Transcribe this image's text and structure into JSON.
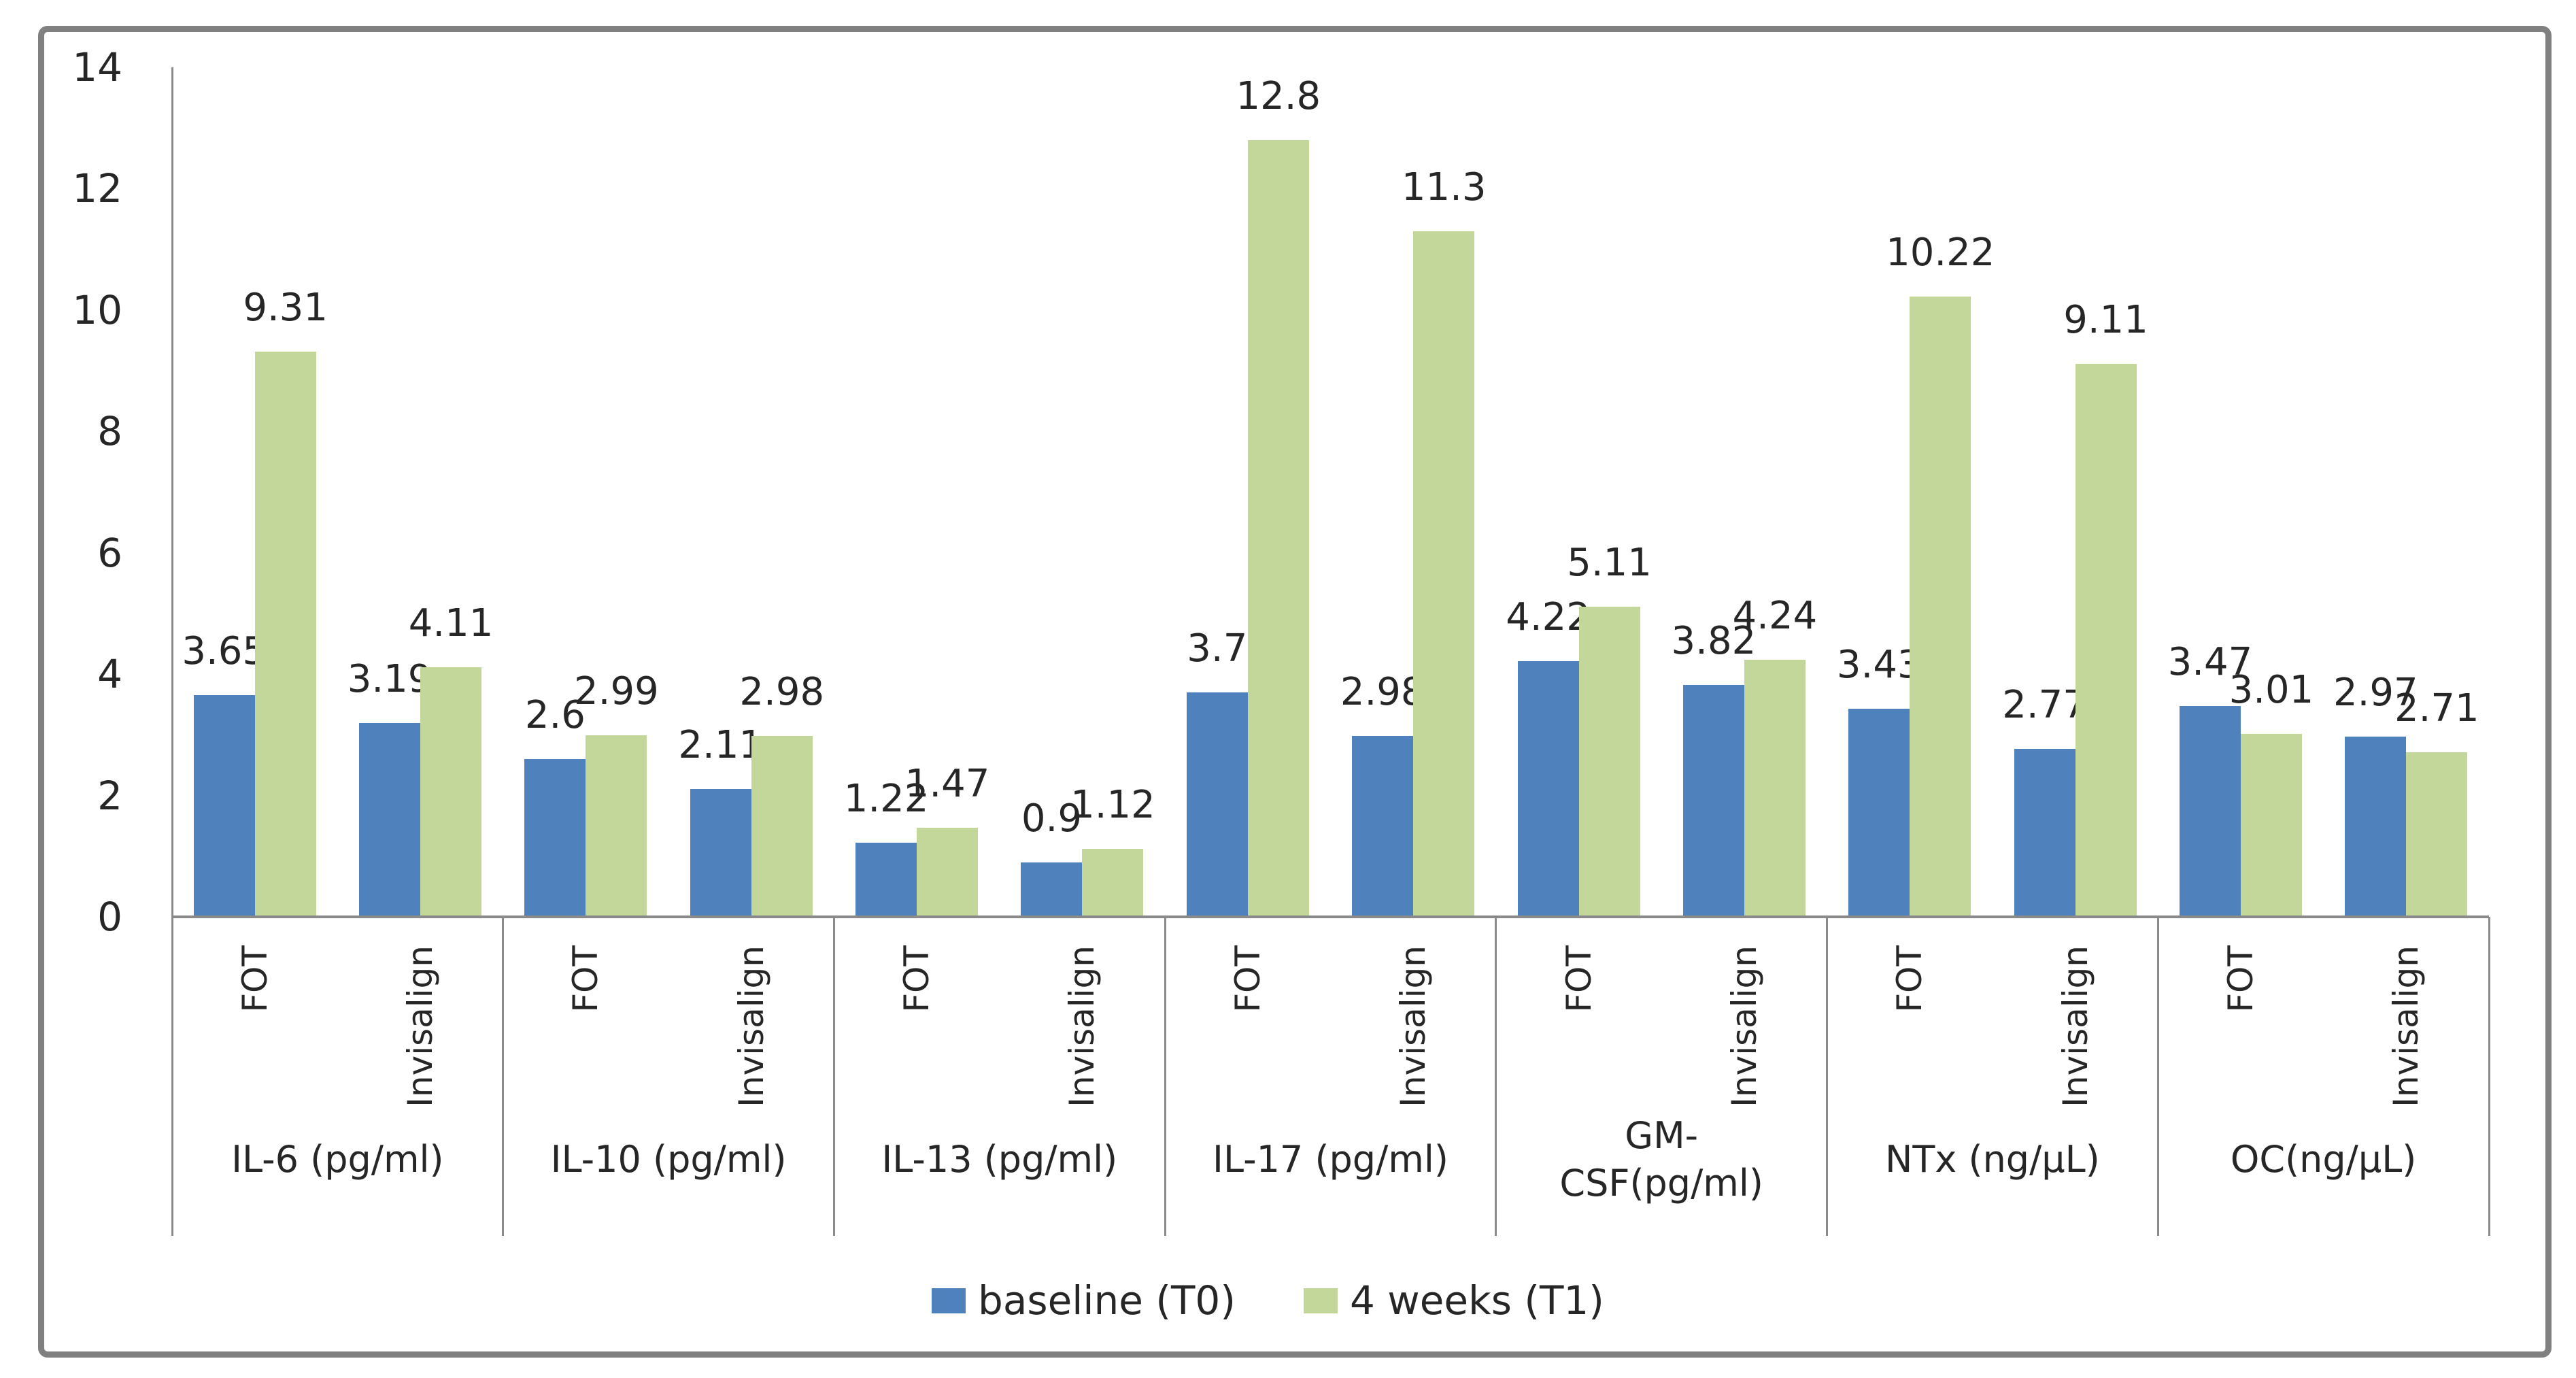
{
  "chart_data": {
    "type": "bar",
    "title": "",
    "y_axis": {
      "min": 0,
      "max": 14,
      "step": 2,
      "ticks": [
        "0",
        "2",
        "4",
        "6",
        "8",
        "10",
        "12",
        "14"
      ]
    },
    "grid": "off",
    "legend_position": "bottom",
    "series": [
      {
        "name": "baseline (T0)",
        "color": "#4F81BD"
      },
      {
        "name": "4 weeks (T1)",
        "color": "#C4D79B"
      }
    ],
    "groups": [
      {
        "label": "IL-6 (pg/ml)",
        "categories": [
          {
            "label": "FOT",
            "values": [
              "3.65",
              "9.31"
            ]
          },
          {
            "label": "Invisalign",
            "values": [
              "3.19",
              "4.11"
            ]
          }
        ]
      },
      {
        "label": "IL-10  (pg/ml)",
        "categories": [
          {
            "label": "FOT",
            "values": [
              "2.6",
              "2.99"
            ]
          },
          {
            "label": "Invisalign",
            "values": [
              "2.11",
              "2.98"
            ]
          }
        ]
      },
      {
        "label": "IL-13 (pg/ml)",
        "categories": [
          {
            "label": "FOT",
            "values": [
              "1.22",
              "1.47"
            ]
          },
          {
            "label": "Invisalign",
            "values": [
              "0.9",
              "1.12"
            ]
          }
        ]
      },
      {
        "label": "IL-17  (pg/ml)",
        "categories": [
          {
            "label": "FOT",
            "values": [
              "3.7",
              "12.8"
            ]
          },
          {
            "label": "Invisalign",
            "values": [
              "2.98",
              "11.3"
            ]
          }
        ]
      },
      {
        "label": "GM-\nCSF(pg/ml)",
        "categories": [
          {
            "label": "FOT",
            "values": [
              "4.22",
              "5.11"
            ]
          },
          {
            "label": "Invisalign",
            "values": [
              "3.82",
              "4.24"
            ]
          }
        ]
      },
      {
        "label": "NTx (ng/µL)",
        "categories": [
          {
            "label": "FOT",
            "values": [
              "3.43",
              "10.22"
            ]
          },
          {
            "label": "Invisalign",
            "values": [
              "2.77",
              "9.11"
            ]
          }
        ]
      },
      {
        "label": "OC(ng/µL)",
        "categories": [
          {
            "label": "FOT",
            "values": [
              "3.47",
              "3.01"
            ]
          },
          {
            "label": "Invisalign",
            "values": [
              "2.97",
              "2.71"
            ]
          }
        ]
      }
    ],
    "style": {
      "axis_line_color": "#8A8A8A",
      "frame_border_color": "#808080",
      "text_color": "#262626",
      "plot_background": "#ffffff"
    }
  }
}
